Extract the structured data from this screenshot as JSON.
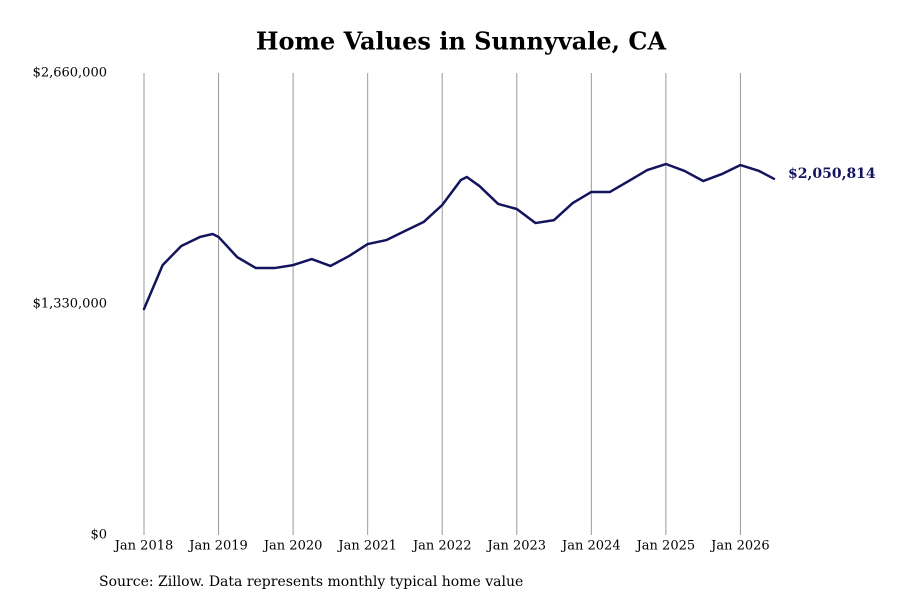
{
  "chart_data": {
    "type": "line",
    "title": "Home Values in Sunnyvale, CA",
    "source": "Source: Zillow. Data represents monthly typical home value",
    "end_label": "$2,050,814",
    "x": [
      2018.0,
      2018.25,
      2018.5,
      2018.75,
      2018.92,
      2019.0,
      2019.25,
      2019.5,
      2019.75,
      2020.0,
      2020.25,
      2020.5,
      2020.75,
      2021.0,
      2021.25,
      2021.5,
      2021.75,
      2022.0,
      2022.25,
      2022.33,
      2022.5,
      2022.75,
      2023.0,
      2023.25,
      2023.5,
      2023.75,
      2024.0,
      2024.25,
      2024.5,
      2024.75,
      2025.0,
      2025.25,
      2025.5,
      2025.75,
      2026.0,
      2026.25,
      2026.45
    ],
    "series": [
      {
        "name": "Home value",
        "color": "#14145e",
        "values": [
          1301000,
          1554000,
          1664000,
          1716000,
          1733000,
          1716000,
          1600000,
          1537000,
          1537000,
          1554000,
          1589000,
          1549000,
          1606000,
          1675000,
          1698000,
          1750000,
          1802000,
          1900000,
          2044000,
          2061000,
          2009000,
          1906000,
          1877000,
          1796000,
          1813000,
          1911000,
          1975000,
          1975000,
          2038000,
          2101000,
          2136000,
          2096000,
          2038000,
          2078000,
          2130000,
          2096000,
          2050814
        ]
      }
    ],
    "xlim": [
      2018,
      2027
    ],
    "xticks": [
      {
        "value": 2018,
        "label": "Jan 2018"
      },
      {
        "value": 2019,
        "label": "Jan 2019"
      },
      {
        "value": 2020,
        "label": "Jan 2020"
      },
      {
        "value": 2021,
        "label": "Jan 2021"
      },
      {
        "value": 2022,
        "label": "Jan 2022"
      },
      {
        "value": 2023,
        "label": "Jan 2023"
      },
      {
        "value": 2024,
        "label": "Jan 2024"
      },
      {
        "value": 2025,
        "label": "Jan 2025"
      },
      {
        "value": 2026,
        "label": "Jan 2026"
      }
    ],
    "ylim": [
      0,
      2660000
    ],
    "yticks": [
      {
        "value": 0,
        "label": "$0"
      },
      {
        "value": 1330000,
        "label": "$1,330,000"
      },
      {
        "value": 2660000,
        "label": "$2,660,000"
      }
    ],
    "grid": "x",
    "grid_color": "#999999"
  }
}
